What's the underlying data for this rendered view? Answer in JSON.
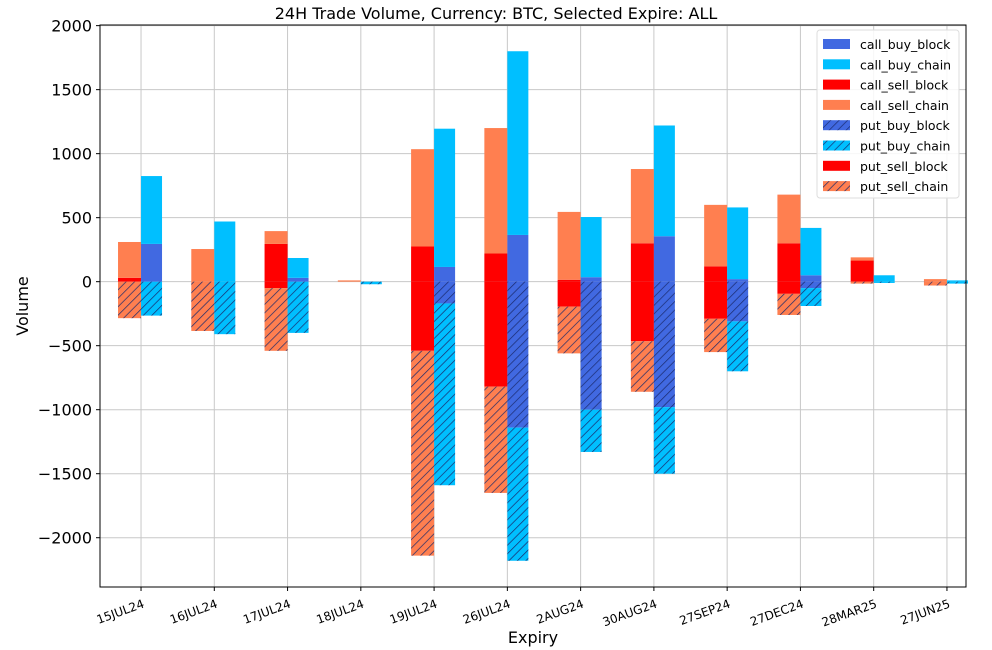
{
  "chart_data": {
    "type": "bar",
    "title": "24H Trade Volume, Currency: BTC, Selected Expire: ALL",
    "xlabel": "Expiry",
    "ylabel": "Volume",
    "ylim": [
      -2385,
      2005
    ],
    "yticks": [
      -2000,
      -1500,
      -1000,
      -500,
      0,
      500,
      1000,
      1500,
      2000
    ],
    "ytick_labels": [
      "−2000",
      "−1500",
      "−1000",
      "−500",
      "0",
      "500",
      "1000",
      "1500",
      "2000"
    ],
    "grid": true,
    "legend_position": "top-right",
    "categories": [
      "15JUL24",
      "16JUL24",
      "17JUL24",
      "18JUL24",
      "19JUL24",
      "26JUL24",
      "2AUG24",
      "30AUG24",
      "27SEP24",
      "27DEC24",
      "28MAR25",
      "27JUN25"
    ],
    "series": [
      {
        "name": "call_buy_block",
        "color": "#4169e1",
        "hatch": false,
        "bar": "right",
        "values": [
          295,
          0,
          30,
          0,
          115,
          365,
          35,
          355,
          20,
          50,
          0,
          0
        ]
      },
      {
        "name": "call_buy_chain",
        "color": "#00bfff",
        "hatch": false,
        "bar": "right",
        "values": [
          530,
          470,
          155,
          0,
          1080,
          1435,
          470,
          865,
          560,
          370,
          50,
          10
        ]
      },
      {
        "name": "call_sell_block",
        "color": "#ff0000",
        "hatch": false,
        "bar": "left",
        "values": [
          30,
          0,
          295,
          0,
          275,
          220,
          15,
          300,
          120,
          300,
          165,
          0
        ]
      },
      {
        "name": "call_sell_chain",
        "color": "#ff7f50",
        "hatch": false,
        "bar": "left",
        "values": [
          280,
          255,
          100,
          10,
          760,
          980,
          530,
          580,
          480,
          380,
          25,
          20
        ]
      },
      {
        "name": "put_buy_block",
        "color": "#4169e1",
        "hatch": true,
        "bar": "right",
        "values": [
          0,
          0,
          0,
          0,
          -170,
          -1140,
          -1000,
          -980,
          -310,
          -50,
          0,
          0
        ]
      },
      {
        "name": "put_buy_chain",
        "color": "#00bfff",
        "hatch": true,
        "bar": "right",
        "values": [
          -265,
          -410,
          -400,
          -20,
          -1420,
          -1040,
          -330,
          -520,
          -390,
          -140,
          -10,
          -15
        ]
      },
      {
        "name": "put_sell_block",
        "color": "#ff0000",
        "hatch": false,
        "bar": "left",
        "values": [
          0,
          0,
          -50,
          0,
          -540,
          -820,
          -195,
          -465,
          -290,
          -95,
          0,
          0
        ]
      },
      {
        "name": "put_sell_chain",
        "color": "#ff7f50",
        "hatch": true,
        "bar": "left",
        "values": [
          -285,
          -385,
          -490,
          0,
          -1600,
          -830,
          -365,
          -395,
          -260,
          -165,
          -15,
          -30
        ]
      }
    ]
  }
}
